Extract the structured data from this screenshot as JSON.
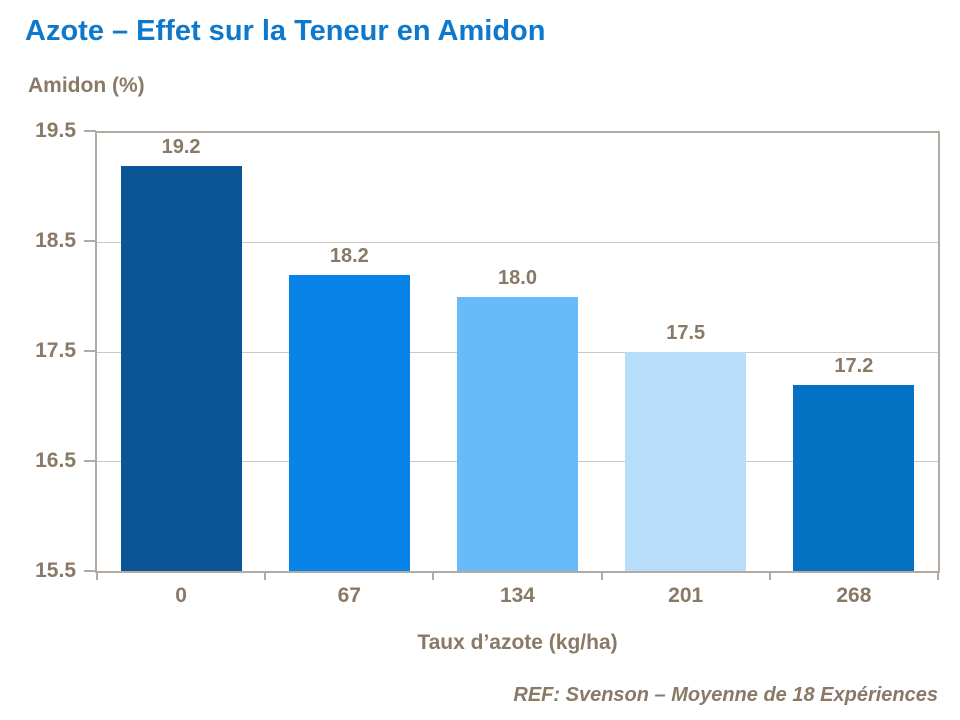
{
  "title": "Azote – Effet sur la Teneur en Amidon",
  "y_axis_title": "Amidon (%)",
  "x_axis_title": "Taux d’azote (kg/ha)",
  "footer": "REF: Svenson – Moyenne de 18 Expériences",
  "colors": {
    "title": "#0E79CC",
    "text": "#8A7966",
    "frame": "#B3ABA1",
    "gridline": "#CCC7C0",
    "bars": [
      "#0A5596",
      "#0884E8",
      "#66BBF8",
      "#B7DDFA",
      "#0571C2"
    ]
  },
  "chart_data": {
    "type": "bar",
    "categories": [
      "0",
      "67",
      "134",
      "201",
      "268"
    ],
    "values": [
      19.2,
      18.2,
      18.0,
      17.5,
      17.2
    ],
    "value_labels": [
      "19.2",
      "18.2",
      "18.0",
      "17.5",
      "17.2"
    ],
    "title": "Azote – Effet sur la Teneur en Amidon",
    "xlabel": "Taux d’azote (kg/ha)",
    "ylabel": "Amidon (%)",
    "ylim": [
      15.5,
      19.5
    ],
    "yticks": [
      "19.5",
      "18.5",
      "17.5",
      "16.5",
      "15.5"
    ],
    "grid": true,
    "legend_position": "none",
    "annotation": "REF: Svenson – Moyenne de 18 Expériences"
  }
}
